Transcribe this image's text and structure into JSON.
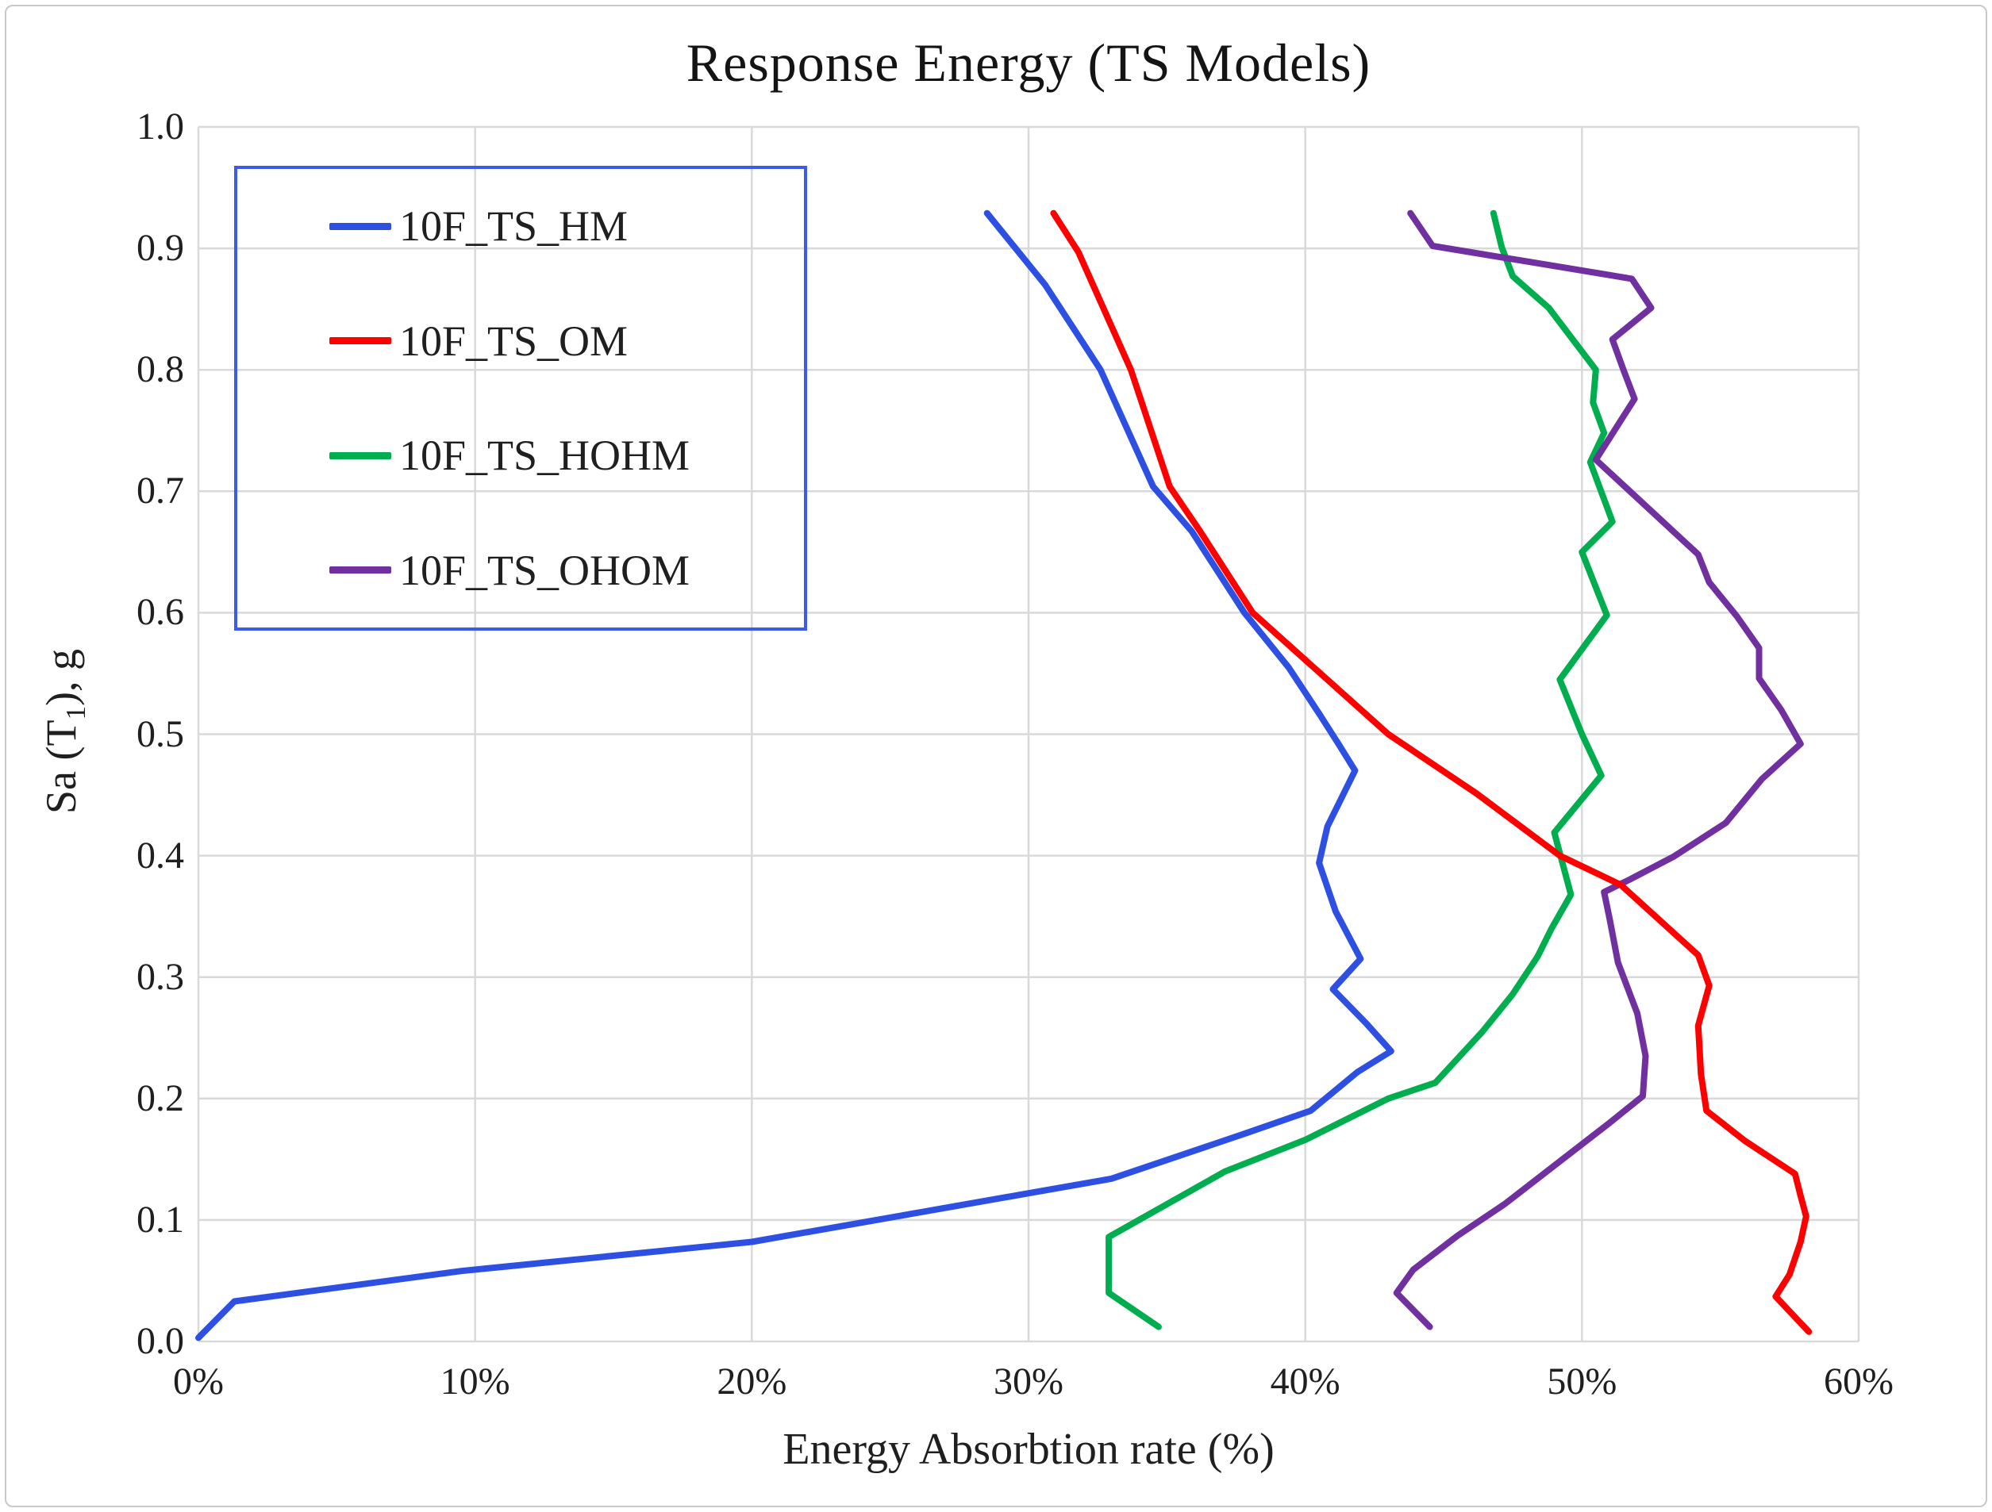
{
  "title": "Response Energy (TS Models)",
  "axes": {
    "x_label": "Energy Absorbtion rate (%)",
    "y_label_prefix": "Sa (T",
    "y_label_sub": "1",
    "y_label_suffix": "), g",
    "x_ticks": [
      "0%",
      "10%",
      "20%",
      "30%",
      "40%",
      "50%",
      "60%"
    ],
    "y_ticks": [
      "0.0",
      "0.1",
      "0.2",
      "0.3",
      "0.4",
      "0.5",
      "0.6",
      "0.7",
      "0.8",
      "0.9",
      "1.0"
    ]
  },
  "legend": {
    "border_color": "#3d5aef",
    "position": "top-left"
  },
  "colors": {
    "gridline": "#d9d9d9",
    "text": "#1f1f1f",
    "background": "#ffffff"
  },
  "chart_data": {
    "type": "line",
    "title": "Response Energy (TS Models)",
    "xlabel": "Energy Absorbtion rate (%)",
    "ylabel": "Sa (T1), g",
    "xlim": [
      0,
      60
    ],
    "ylim": [
      0.0,
      1.0
    ],
    "x_unit": "percent",
    "grid": true,
    "legend_position": "top-left",
    "series": [
      {
        "name": "10F_TS_HM",
        "color": "#2d50e2",
        "points": [
          [
            0,
            0.003
          ],
          [
            1.3,
            0.033
          ],
          [
            9.5,
            0.058
          ],
          [
            20,
            0.082
          ],
          [
            30,
            0.122
          ],
          [
            33,
            0.134
          ],
          [
            37.8,
            0.171
          ],
          [
            40.2,
            0.19
          ],
          [
            41.9,
            0.222
          ],
          [
            43.1,
            0.239
          ],
          [
            42.2,
            0.262
          ],
          [
            41,
            0.29
          ],
          [
            42,
            0.315
          ],
          [
            41.1,
            0.354
          ],
          [
            40.5,
            0.394
          ],
          [
            40.8,
            0.424
          ],
          [
            41.8,
            0.47
          ],
          [
            41.2,
            0.492
          ],
          [
            40.5,
            0.517
          ],
          [
            39.4,
            0.555
          ],
          [
            37.8,
            0.6
          ],
          [
            35.9,
            0.667
          ],
          [
            34.5,
            0.704
          ],
          [
            32.6,
            0.8
          ],
          [
            30.6,
            0.87
          ],
          [
            28.5,
            0.929
          ]
        ]
      },
      {
        "name": "10F_TS_OM",
        "color": "#ff0000",
        "points": [
          [
            58.2,
            0.008
          ],
          [
            57,
            0.037
          ],
          [
            57.5,
            0.055
          ],
          [
            57.9,
            0.082
          ],
          [
            58.1,
            0.103
          ],
          [
            57.9,
            0.12
          ],
          [
            57.7,
            0.138
          ],
          [
            55.9,
            0.165
          ],
          [
            54.5,
            0.19
          ],
          [
            54.3,
            0.22
          ],
          [
            54.2,
            0.26
          ],
          [
            54.6,
            0.293
          ],
          [
            54.2,
            0.318
          ],
          [
            51.4,
            0.376
          ],
          [
            49.2,
            0.4
          ],
          [
            46.2,
            0.451
          ],
          [
            43,
            0.5
          ],
          [
            38.1,
            0.6
          ],
          [
            36.2,
            0.667
          ],
          [
            35.1,
            0.704
          ],
          [
            33.7,
            0.8
          ],
          [
            31.8,
            0.897
          ],
          [
            30.9,
            0.929
          ]
        ]
      },
      {
        "name": "10F_TS_HOHM",
        "color": "#00ae50",
        "points": [
          [
            34.7,
            0.012
          ],
          [
            32.9,
            0.04
          ],
          [
            32.9,
            0.086
          ],
          [
            37.1,
            0.14
          ],
          [
            40,
            0.166
          ],
          [
            43,
            0.2
          ],
          [
            44.7,
            0.213
          ],
          [
            46.4,
            0.255
          ],
          [
            47.5,
            0.286
          ],
          [
            48.4,
            0.317
          ],
          [
            48.9,
            0.34
          ],
          [
            49.6,
            0.368
          ],
          [
            49,
            0.419
          ],
          [
            50.7,
            0.466
          ],
          [
            50,
            0.5
          ],
          [
            49.2,
            0.545
          ],
          [
            50.9,
            0.598
          ],
          [
            50,
            0.65
          ],
          [
            51.1,
            0.675
          ],
          [
            50.3,
            0.724
          ],
          [
            50.8,
            0.748
          ],
          [
            50.4,
            0.773
          ],
          [
            50.5,
            0.8
          ],
          [
            48.8,
            0.851
          ],
          [
            47.5,
            0.877
          ],
          [
            47.1,
            0.901
          ],
          [
            46.8,
            0.929
          ]
        ]
      },
      {
        "name": "10F_TS_OHOM",
        "color": "#7030a0",
        "points": [
          [
            44.5,
            0.012
          ],
          [
            43.3,
            0.04
          ],
          [
            43.9,
            0.059
          ],
          [
            45.5,
            0.087
          ],
          [
            47.2,
            0.113
          ],
          [
            49.3,
            0.15
          ],
          [
            51,
            0.18
          ],
          [
            52.2,
            0.202
          ],
          [
            52.3,
            0.235
          ],
          [
            52,
            0.27
          ],
          [
            51.3,
            0.312
          ],
          [
            51,
            0.348
          ],
          [
            50.8,
            0.37
          ],
          [
            51.7,
            0.38
          ],
          [
            53.3,
            0.399
          ],
          [
            55.2,
            0.427
          ],
          [
            56.5,
            0.463
          ],
          [
            57.9,
            0.492
          ],
          [
            57.2,
            0.52
          ],
          [
            56.4,
            0.546
          ],
          [
            56.4,
            0.571
          ],
          [
            55.6,
            0.597
          ],
          [
            54.6,
            0.625
          ],
          [
            54.2,
            0.648
          ],
          [
            50.5,
            0.726
          ],
          [
            51.9,
            0.776
          ],
          [
            51.5,
            0.8
          ],
          [
            51.1,
            0.825
          ],
          [
            52.5,
            0.851
          ],
          [
            51.8,
            0.875
          ],
          [
            44.6,
            0.902
          ],
          [
            43.8,
            0.929
          ]
        ]
      }
    ]
  }
}
